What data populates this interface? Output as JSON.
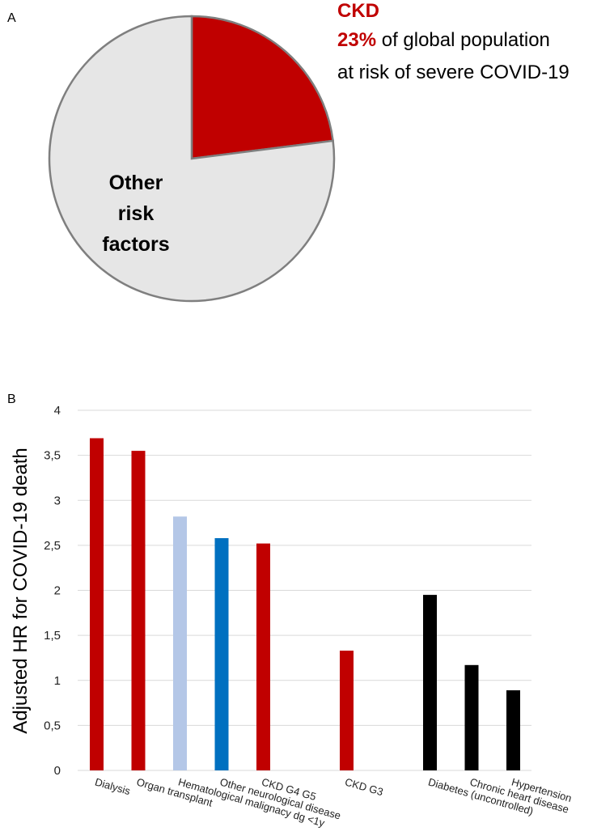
{
  "panels": {
    "a": "A",
    "b": "B"
  },
  "colors": {
    "ckd": "#c00000",
    "other": "#e6e6e6",
    "pie_stroke": "#7f7f7f",
    "light_blue": "#b4c7e7",
    "blue": "#0070c0",
    "black": "#000000",
    "grid": "#d9d9d9"
  },
  "legend": {
    "category": "CKD",
    "percent": "23%",
    "line1_rest": " of global population",
    "line2": "at risk of severe COVID-19"
  },
  "chart_data": [
    {
      "type": "pie",
      "slices": [
        {
          "label": "CKD",
          "value": 23,
          "color": "#c00000"
        },
        {
          "label": "Other risk factors",
          "value": 77,
          "color": "#e6e6e6"
        }
      ],
      "slice_label_lines": [
        "Other",
        "risk",
        "factors"
      ]
    },
    {
      "type": "bar",
      "ylabel": "Adjusted HR for COVID-19 death",
      "xlabel": "",
      "ylim": [
        0,
        4
      ],
      "yticks": [
        "0",
        "0,5",
        "1",
        "1,5",
        "2",
        "2,5",
        "3",
        "3,5",
        "4"
      ],
      "grid": true,
      "bars": [
        {
          "label": "Dialysis",
          "value": 3.69,
          "color": "#c00000",
          "slot": 0
        },
        {
          "label": "Organ transplant",
          "value": 3.55,
          "color": "#c00000",
          "slot": 1
        },
        {
          "label": "Hematological malignacy dg <1y",
          "value": 2.82,
          "color": "#b4c7e7",
          "slot": 2
        },
        {
          "label": "Other neurological disease",
          "value": 2.58,
          "color": "#0070c0",
          "slot": 3
        },
        {
          "label": "CKD G4 G5",
          "value": 2.52,
          "color": "#c00000",
          "slot": 4
        },
        {
          "label": "CKD G3",
          "value": 1.33,
          "color": "#c00000",
          "slot": 6
        },
        {
          "label": "Diabetes (uncontrolled)",
          "value": 1.95,
          "color": "#000000",
          "slot": 8
        },
        {
          "label": "Chronic heart disease",
          "value": 1.17,
          "color": "#000000",
          "slot": 9
        },
        {
          "label": "Hypertension",
          "value": 0.89,
          "color": "#000000",
          "slot": 10
        }
      ]
    }
  ]
}
